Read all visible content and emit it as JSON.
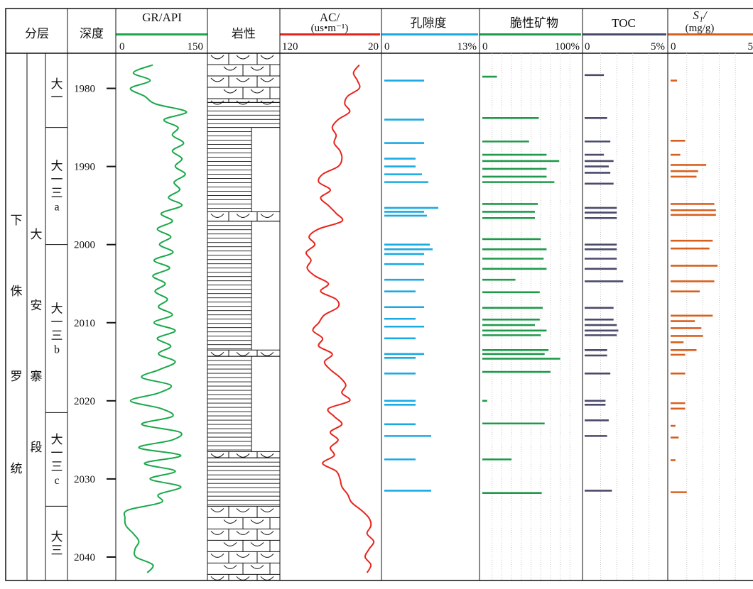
{
  "header": {
    "strat_label": "分层",
    "depth_label": "深度",
    "gr_label": "GR/API",
    "gr_min": "0",
    "gr_max": "150",
    "lith_label": "岩性",
    "ac_label": "AC/",
    "ac_unit": "(us•m⁻¹)",
    "ac_min": "120",
    "ac_max": "20",
    "por_label": "孔隙度",
    "por_min": "0",
    "por_max": "13%",
    "brit_label": "脆性矿物",
    "brit_min": "0",
    "brit_max": "100%",
    "toc_label": "TOC",
    "toc_min": "0",
    "toc_max": "5%",
    "s1_label": "S₁/",
    "s1_unit": "(mg/g)",
    "s1_min": "0",
    "s1_max": "5"
  },
  "strat": {
    "formation": [
      "下",
      "侏",
      "罗",
      "统"
    ],
    "member": [
      "大",
      "安",
      "寨",
      "段"
    ],
    "sub_zones": [
      {
        "text": [
          "大",
          "一"
        ],
        "top": 1975.5,
        "bottom": 1985.0
      },
      {
        "text": [
          "大",
          "一",
          "三",
          "a"
        ],
        "top": 1985.0,
        "bottom": 2000.0
      },
      {
        "text": [
          "大",
          "一",
          "三",
          "b"
        ],
        "top": 2000.0,
        "bottom": 2021.5
      },
      {
        "text": [
          "大",
          "一",
          "三",
          "c"
        ],
        "top": 2021.5,
        "bottom": 2033.5
      },
      {
        "text": [
          "大",
          "三"
        ],
        "top": 2033.5,
        "bottom": 2043.0
      }
    ]
  },
  "colors": {
    "gr": "#1aa84a",
    "ac": "#e8241c",
    "porosity": "#1aaae3",
    "brittle": "#1e9a4a",
    "toc": "#4a4a6a",
    "s1": "#d8601f"
  },
  "chart_data": {
    "type": "well-log",
    "ylabel": "深度",
    "depth_range": [
      1975.5,
      2043
    ],
    "depth_ticks": [
      1980,
      1990,
      2000,
      2010,
      2020,
      2030,
      2040
    ],
    "gr": {
      "name": "GR/API",
      "xlim": [
        0,
        150
      ],
      "depth": [
        1977,
        1978,
        1979,
        1980,
        1981,
        1982,
        1983,
        1984,
        1985,
        1986,
        1987,
        1988,
        1989,
        1990,
        1991,
        1992,
        1993,
        1994,
        1995,
        1996,
        1997,
        1998,
        1999,
        2000,
        2001,
        2002,
        2003,
        2004,
        2005,
        2006,
        2007,
        2008,
        2009,
        2010,
        2011,
        2012,
        2013,
        2014,
        2015,
        2016,
        2017,
        2018,
        2019,
        2020,
        2021,
        2022,
        2023,
        2024,
        2025,
        2026,
        2027,
        2028,
        2029,
        2030,
        2031,
        2032,
        2033,
        2034,
        2035,
        2036,
        2037,
        2038,
        2039,
        2040,
        2041,
        2042
      ],
      "values": [
        60,
        25,
        55,
        20,
        45,
        65,
        120,
        80,
        105,
        95,
        115,
        95,
        112,
        100,
        118,
        98,
        108,
        88,
        112,
        75,
        95,
        68,
        92,
        72,
        96,
        62,
        90,
        60,
        82,
        64,
        86,
        70,
        95,
        62,
        100,
        68,
        92,
        70,
        100,
        72,
        40,
        92,
        70,
        20,
        75,
        95,
        40,
        108,
        95,
        35,
        110,
        45,
        100,
        55,
        110,
        70,
        75,
        15,
        10,
        12,
        25,
        35,
        28,
        30,
        60,
        50
      ]
    },
    "ac": {
      "name": "AC",
      "xlim": [
        120,
        20
      ],
      "depth": [
        1977,
        1978,
        1979,
        1980,
        1981,
        1982,
        1983,
        1984,
        1985,
        1986,
        1987,
        1988,
        1989,
        1990,
        1991,
        1992,
        1993,
        1994,
        1995,
        1996,
        1997,
        1998,
        1999,
        2000,
        2001,
        2002,
        2003,
        2004,
        2005,
        2006,
        2007,
        2008,
        2009,
        2010,
        2011,
        2012,
        2013,
        2014,
        2015,
        2016,
        2017,
        2018,
        2019,
        2020,
        2021,
        2022,
        2023,
        2024,
        2025,
        2026,
        2027,
        2028,
        2029,
        2030,
        2031,
        2032,
        2033,
        2034,
        2035,
        2036,
        2037,
        2038,
        2039,
        2040,
        2041,
        2042
      ],
      "values": [
        40,
        46,
        42,
        40,
        52,
        55,
        50,
        62,
        68,
        64,
        66,
        60,
        58,
        62,
        78,
        82,
        70,
        80,
        72,
        64,
        58,
        82,
        92,
        86,
        95,
        90,
        94,
        86,
        72,
        80,
        64,
        62,
        76,
        82,
        88,
        78,
        82,
        68,
        76,
        70,
        60,
        54,
        58,
        50,
        72,
        66,
        58,
        70,
        62,
        70,
        66,
        78,
        64,
        60,
        58,
        52,
        48,
        38,
        30,
        28,
        32,
        25,
        30,
        34,
        28,
        32
      ]
    },
    "porosity": {
      "name": "孔隙度",
      "xlim": [
        0,
        13
      ],
      "unit": "%",
      "depth": [
        1979,
        1984,
        1987,
        1989,
        1990,
        1991,
        1992,
        1995.3,
        1995.8,
        1996.3,
        2000,
        2000.6,
        2001.2,
        2002.5,
        2004.5,
        2006,
        2008,
        2009.5,
        2010.5,
        2012,
        2014,
        2014.5,
        2016.5,
        2020,
        2020.5,
        2023,
        2024.5,
        2027.5,
        2031.5
      ],
      "values": [
        5.6,
        5.6,
        5.6,
        4.4,
        4.4,
        5.3,
        6.2,
        7.6,
        5.6,
        6.0,
        6.4,
        6.8,
        5.6,
        5.6,
        5.6,
        4.4,
        5.6,
        4.4,
        5.6,
        4.4,
        5.6,
        4.4,
        4.4,
        4.4,
        4.4,
        4.4,
        6.6,
        4.4,
        6.6
      ]
    },
    "brittle": {
      "name": "脆性矿物",
      "xlim": [
        0,
        100
      ],
      "unit": "%",
      "depth": [
        1978.5,
        1983.8,
        1986.8,
        1988.5,
        1989.3,
        1990.3,
        1991.3,
        1992.0,
        1994.8,
        1995.8,
        1996.6,
        1999.3,
        2000.6,
        2001.8,
        2003.1,
        2004.5,
        2006.1,
        2008.1,
        2009.6,
        2010.3,
        2011.0,
        2011.6,
        2013.5,
        2014.0,
        2014.6,
        2016.3,
        2020.0,
        2022.9,
        2027.5,
        2031.8
      ],
      "values": [
        15,
        58,
        48,
        66,
        79,
        66,
        66,
        74,
        57,
        54,
        54,
        60,
        66,
        63,
        66,
        34,
        59,
        62,
        59,
        54,
        66,
        60,
        68,
        64,
        80,
        70,
        5,
        64,
        30,
        61
      ]
    },
    "toc": {
      "name": "TOC",
      "xlim": [
        0,
        5
      ],
      "unit": "%",
      "depth": [
        1978.3,
        1983.8,
        1986.8,
        1988.5,
        1989.3,
        1990.0,
        1990.8,
        1992.2,
        1995.3,
        1995.9,
        1996.6,
        2000.0,
        2000.6,
        2001.8,
        2003.1,
        2004.7,
        2008.1,
        2009.6,
        2010.3,
        2011.0,
        2011.6,
        2013.5,
        2014.2,
        2016.5,
        2020.0,
        2020.5,
        2022.5,
        2024.5,
        2031.5
      ],
      "values": [
        1.2,
        1.4,
        1.6,
        1.2,
        1.8,
        1.5,
        1.6,
        1.8,
        2.0,
        2.0,
        2.0,
        2.0,
        2.0,
        2.0,
        2.0,
        2.4,
        1.8,
        1.8,
        2.0,
        2.1,
        2.0,
        1.4,
        1.4,
        1.6,
        1.3,
        1.3,
        1.5,
        1.4,
        1.7
      ]
    },
    "s1": {
      "name": "S₁",
      "xlim": [
        0,
        5
      ],
      "unit": "mg/g",
      "depth": [
        1979,
        1986.7,
        1988.5,
        1989.8,
        1990.6,
        1991.3,
        1994.8,
        1995.6,
        1996.2,
        1999.5,
        2000.5,
        2002.7,
        2004.7,
        2006.0,
        2009.1,
        2009.8,
        2010.7,
        2011.7,
        2012.5,
        2013.5,
        2014.1,
        2016.5,
        2020.3,
        2021.0,
        2023.2,
        2024.7,
        2027.6,
        2031.7
      ],
      "values": [
        0.4,
        0.9,
        0.6,
        2.2,
        1.7,
        1.6,
        2.7,
        2.8,
        2.8,
        2.6,
        2.4,
        2.9,
        2.7,
        1.8,
        2.6,
        1.5,
        1.9,
        2.0,
        0.8,
        1.6,
        0.9,
        0.9,
        0.9,
        0.9,
        0.3,
        0.5,
        0.3,
        1.0
      ]
    }
  }
}
